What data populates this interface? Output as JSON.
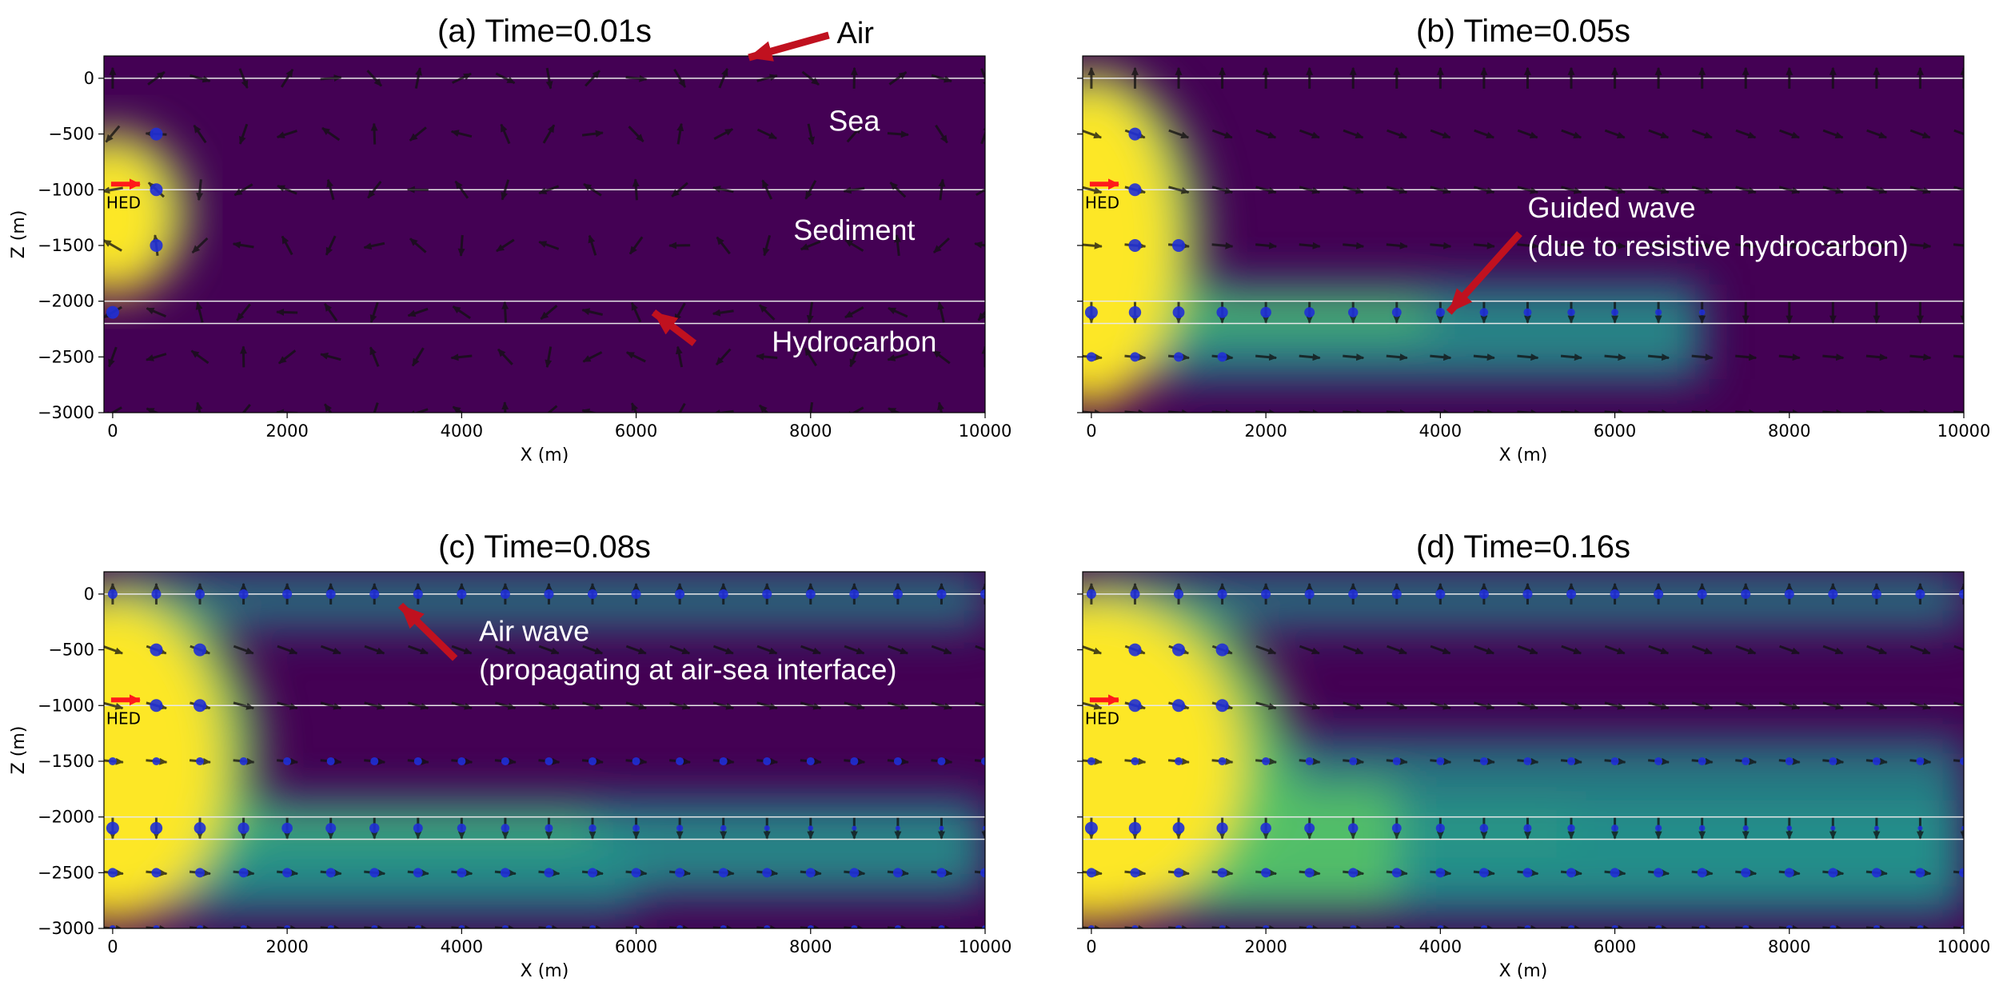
{
  "chart_data": [
    {
      "type": "heatmap",
      "panel": "a",
      "title": "(a) Time=0.01s",
      "xlabel": "X (m)",
      "ylabel": "Z (m)",
      "xlim": [
        -100,
        10000
      ],
      "ylim": [
        -3000,
        200
      ],
      "xticks": [
        0,
        2000,
        4000,
        6000,
        8000,
        10000
      ],
      "yticks": [
        0,
        -500,
        -1000,
        -1500,
        -2000,
        -2500,
        -3000
      ],
      "interfaces_z": [
        0,
        -1000,
        -2000,
        -2200
      ],
      "source": {
        "label": "HED",
        "x": 0,
        "z": -950
      },
      "annotations": [
        {
          "text": "Air",
          "x": 7200,
          "z": 100,
          "style": "black-outside",
          "arrow": true
        },
        {
          "text": "Sea",
          "x": 8500,
          "z": -470,
          "style": "white",
          "arrow": false
        },
        {
          "text": "Sediment",
          "x": 8500,
          "z": -1450,
          "style": "white",
          "arrow": false
        },
        {
          "text": "Hydrocarbon",
          "x": 8500,
          "z": -2450,
          "style": "white",
          "arrow": true,
          "arrow_to": [
            6200,
            -2100
          ]
        }
      ]
    },
    {
      "type": "heatmap",
      "panel": "b",
      "title": "(b) Time=0.05s",
      "xlabel": "X (m)",
      "ylabel": "",
      "xlim": [
        -100,
        10000
      ],
      "ylim": [
        -3000,
        200
      ],
      "xticks": [
        0,
        2000,
        4000,
        6000,
        8000,
        10000
      ],
      "yticks": [],
      "interfaces_z": [
        0,
        -1000,
        -2000,
        -2200
      ],
      "source": {
        "label": "HED",
        "x": 0,
        "z": -950
      },
      "annotations": [
        {
          "text": "Guided wave",
          "line2": "(due to resistive hydrocarbon)",
          "x": 5000,
          "z": -1250,
          "style": "white",
          "arrow": true,
          "arrow_to": [
            4100,
            -2100
          ]
        }
      ]
    },
    {
      "type": "heatmap",
      "panel": "c",
      "title": "(c) Time=0.08s",
      "xlabel": "X (m)",
      "ylabel": "Z (m)",
      "xlim": [
        -100,
        10000
      ],
      "ylim": [
        -3000,
        200
      ],
      "xticks": [
        0,
        2000,
        4000,
        6000,
        8000,
        10000
      ],
      "yticks": [
        0,
        -500,
        -1000,
        -1500,
        -2000,
        -2500,
        -3000
      ],
      "interfaces_z": [
        0,
        -1000,
        -2000,
        -2200
      ],
      "source": {
        "label": "HED",
        "x": 0,
        "z": -950
      },
      "annotations": [
        {
          "text": "Air wave",
          "line2": "(propagating at air-sea interface)",
          "x": 4200,
          "z": -420,
          "style": "white",
          "arrow": true,
          "arrow_to": [
            3300,
            -100
          ]
        }
      ]
    },
    {
      "type": "heatmap",
      "panel": "d",
      "title": "(d) Time=0.16s",
      "xlabel": "X (m)",
      "ylabel": "",
      "xlim": [
        -100,
        10000
      ],
      "ylim": [
        -3000,
        200
      ],
      "xticks": [
        0,
        2000,
        4000,
        6000,
        8000,
        10000
      ],
      "yticks": [],
      "interfaces_z": [
        0,
        -1000,
        -2000,
        -2200
      ],
      "source": {
        "label": "HED",
        "x": 0,
        "z": -950
      },
      "annotations": []
    }
  ],
  "colors": {
    "background": "#440154",
    "mid": "#21918c",
    "high": "#fde725",
    "interface_line": "#e8e8e8",
    "arrow_annotation": "#c0111f",
    "source_arrow": "#ff1a1a",
    "receiver_dot": "#1f2fd6",
    "field_arrow": "#111111"
  }
}
